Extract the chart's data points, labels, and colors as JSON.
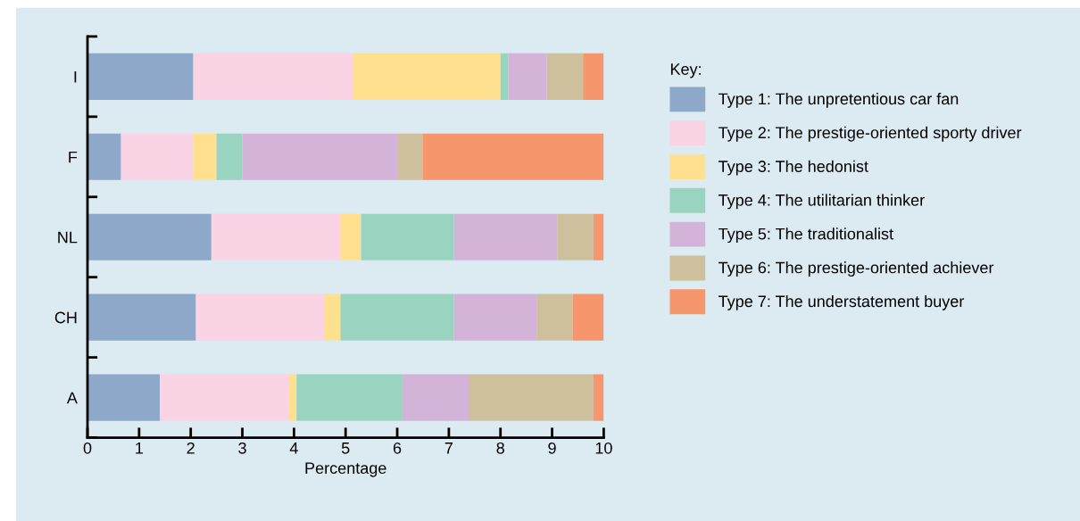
{
  "chart_data": {
    "type": "bar",
    "orientation": "horizontal",
    "stacked": true,
    "xlabel": "Percentage",
    "legend_title": "Key:",
    "legend": "right",
    "categories": [
      "I",
      "F",
      "NL",
      "CH",
      "A"
    ],
    "xlim": [
      0,
      10
    ],
    "xticks": [
      0,
      1,
      2,
      3,
      4,
      5,
      6,
      7,
      8,
      9,
      10
    ],
    "grid": false,
    "series": [
      {
        "name": "Type 1: The unpretentious car fan",
        "color": "#8da8c8",
        "values": [
          2.05,
          0.65,
          2.4,
          2.1,
          1.4
        ]
      },
      {
        "name": "Type 2: The prestige-oriented sporty driver",
        "color": "#fad4e4",
        "values": [
          3.1,
          1.4,
          2.5,
          2.5,
          2.5
        ]
      },
      {
        "name": "Type 3: The hedonist",
        "color": "#ffe08f",
        "values": [
          2.85,
          0.45,
          0.4,
          0.3,
          0.15
        ]
      },
      {
        "name": "Type 4: The utilitarian thinker",
        "color": "#99d4c0",
        "values": [
          0.15,
          0.5,
          1.8,
          2.2,
          2.05
        ]
      },
      {
        "name": "Type 5: The traditionalist",
        "color": "#d3b3d7",
        "values": [
          0.75,
          3.0,
          2.0,
          1.6,
          1.3
        ]
      },
      {
        "name": "Type 6: The prestige-oriented achiever",
        "color": "#cec09d",
        "values": [
          0.7,
          0.5,
          0.7,
          0.7,
          2.4
        ]
      },
      {
        "name": "Type 7: The understatement buyer",
        "color": "#f5966c",
        "values": [
          0.4,
          3.5,
          0.2,
          0.6,
          0.2
        ]
      }
    ]
  }
}
